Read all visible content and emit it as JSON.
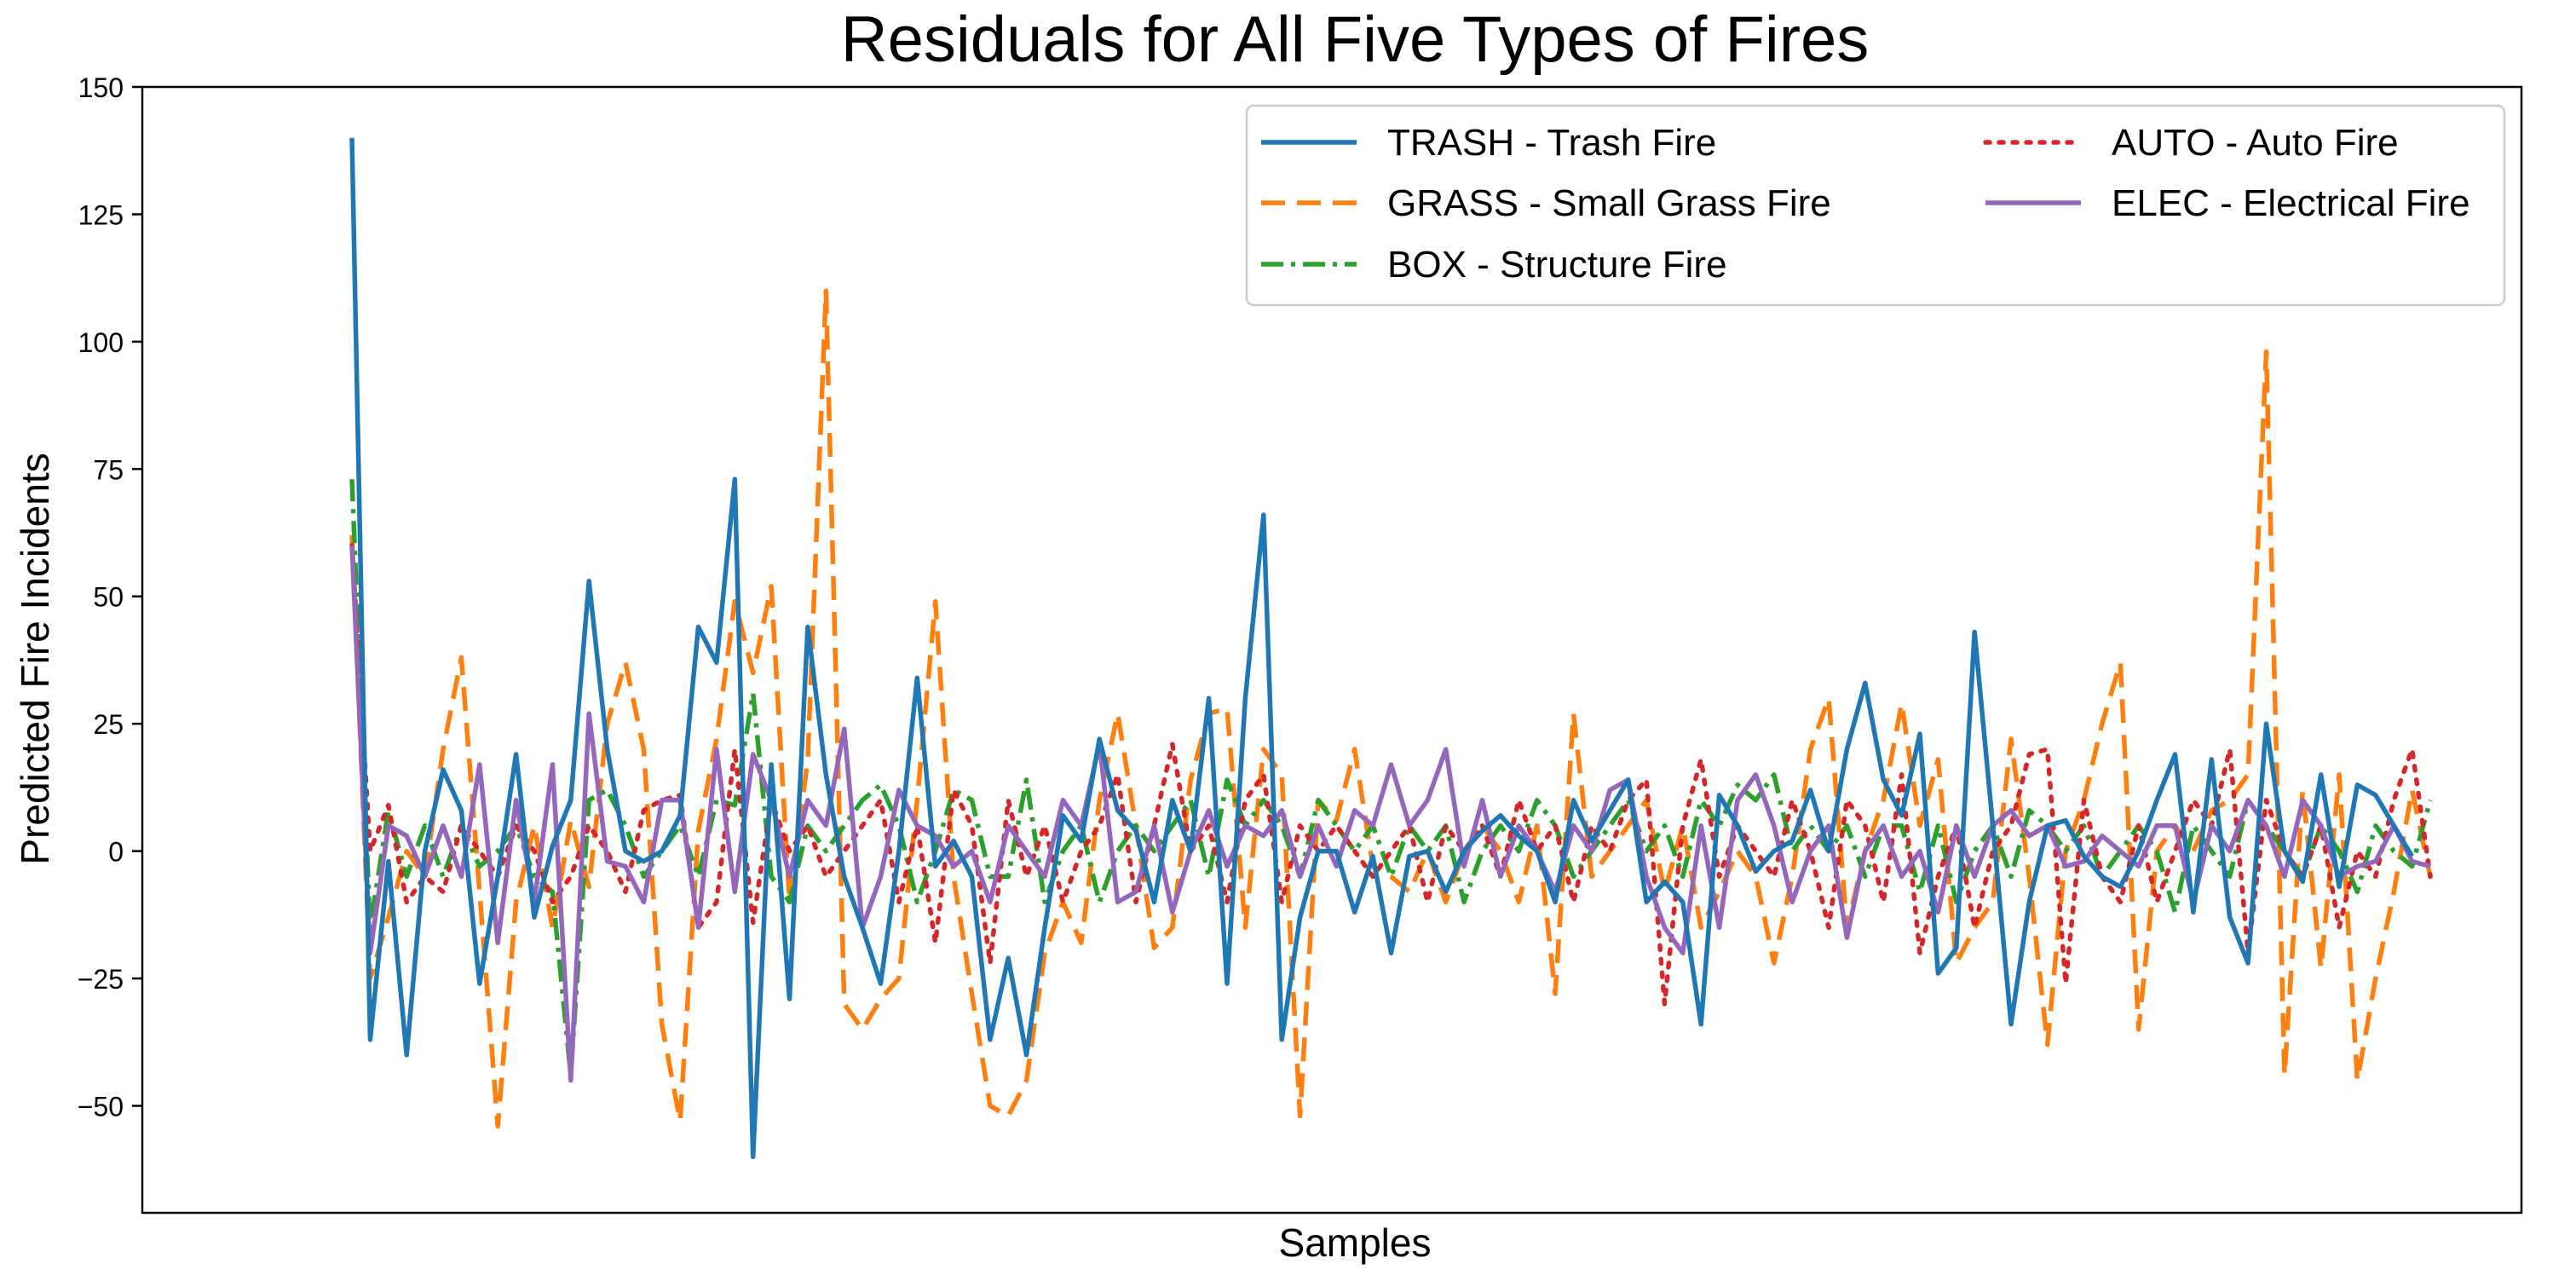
{
  "chart_data": {
    "type": "line",
    "title": "Residuals for All Five Types of Fires",
    "xlabel": "Samples",
    "ylabel": "Predicted Fire Incidents",
    "ylim": [
      -71,
      150
    ],
    "yticks": [
      -50,
      -25,
      0,
      25,
      50,
      75,
      100,
      125,
      150
    ],
    "xticks": [],
    "xlim": [
      -11.5,
      119
    ],
    "grid": false,
    "legend": {
      "placement": "upper-right",
      "columns": 2
    },
    "series": [
      {
        "name": "TRASH - Trash Fire",
        "color": "#1f77b4",
        "dash": "solid",
        "values": [
          140,
          -37,
          -2,
          -40,
          0,
          16,
          8,
          -26,
          -5,
          19,
          -13,
          1,
          10,
          53,
          20,
          0,
          -2,
          0,
          7,
          44,
          37,
          73,
          -60,
          17,
          -29,
          44,
          15,
          -5,
          -15,
          -26,
          0,
          34,
          -3,
          2,
          -5,
          -37,
          -21,
          -40,
          -15,
          7,
          2,
          22,
          8,
          4,
          -10,
          10,
          0,
          30,
          -26,
          30,
          66,
          -37,
          -13,
          0,
          0,
          -12,
          -1,
          -20,
          -1,
          0,
          -8,
          0,
          4,
          7,
          3,
          0,
          -10,
          10,
          2,
          8,
          14,
          -10,
          -6,
          -10,
          -34,
          11,
          5,
          -4,
          0,
          2,
          12,
          0,
          20,
          33,
          14,
          7,
          23,
          -24,
          -19,
          43,
          5,
          -34,
          -10,
          5,
          6,
          -1,
          -5,
          -7,
          0,
          10,
          19,
          -12,
          18,
          -13,
          -22,
          25,
          0,
          -6,
          15,
          -7,
          13,
          11,
          5,
          -1
        ]
      },
      {
        "name": "GRASS - Small Grass Fire",
        "color": "#ff7f0e",
        "dash": "dashed",
        "values": [
          62,
          -25,
          -13,
          0,
          -5,
          20,
          38,
          -8,
          -54,
          -10,
          5,
          -15,
          6,
          -7,
          25,
          37,
          20,
          -34,
          -53,
          4,
          22,
          49,
          35,
          52,
          -10,
          18,
          110,
          -30,
          -35,
          -29,
          -25,
          10,
          49,
          -5,
          -28,
          -50,
          -52,
          -45,
          -20,
          -10,
          -18,
          10,
          27,
          5,
          -19,
          -15,
          14,
          27,
          28,
          -15,
          20,
          15,
          -52,
          10,
          6,
          20,
          -3,
          -5,
          -8,
          0,
          -10,
          0,
          5,
          0,
          -10,
          5,
          -28,
          27,
          -5,
          0,
          5,
          10,
          -8,
          5,
          -15,
          -8,
          0,
          -5,
          -22,
          -5,
          20,
          30,
          -15,
          0,
          10,
          29,
          5,
          18,
          -22,
          -15,
          -10,
          22,
          -5,
          -38,
          0,
          10,
          25,
          37,
          -35,
          0,
          5,
          0,
          8,
          10,
          15,
          98,
          -44,
          12,
          -23,
          15,
          -45,
          -25,
          -8,
          12,
          -5
        ]
      },
      {
        "name": "BOX - Structure Fire",
        "color": "#2ca02c",
        "dash": "dashdot",
        "values": [
          73,
          -15,
          8,
          -5,
          5,
          -5,
          5,
          -3,
          0,
          5,
          -5,
          -8,
          -44,
          10,
          12,
          5,
          -5,
          0,
          5,
          -5,
          10,
          9,
          31,
          -5,
          -10,
          5,
          0,
          5,
          10,
          13,
          5,
          -10,
          0,
          12,
          10,
          -5,
          -5,
          14,
          -10,
          0,
          5,
          -10,
          0,
          5,
          0,
          5,
          10,
          -5,
          14,
          5,
          10,
          5,
          -5,
          10,
          5,
          0,
          5,
          -5,
          5,
          0,
          5,
          -10,
          0,
          5,
          0,
          10,
          5,
          -5,
          0,
          5,
          10,
          0,
          5,
          -5,
          10,
          5,
          13,
          10,
          15,
          0,
          5,
          0,
          5,
          -5,
          5,
          5,
          -8,
          5,
          -10,
          0,
          5,
          -5,
          8,
          5,
          0,
          5,
          -5,
          0,
          5,
          0,
          -12,
          5,
          0,
          -5,
          10,
          5,
          0,
          -5,
          5,
          0,
          -8,
          5,
          0,
          -3,
          10
        ]
      },
      {
        "name": "AUTO - Auto Fire",
        "color": "#d62728",
        "dash": "dotted",
        "values": [
          60,
          0,
          9,
          -10,
          -5,
          -8,
          5,
          0,
          -5,
          5,
          0,
          -10,
          -5,
          5,
          0,
          -8,
          8,
          10,
          11,
          -15,
          -10,
          20,
          -14,
          10,
          0,
          5,
          -5,
          0,
          5,
          10,
          -10,
          5,
          -18,
          12,
          5,
          -22,
          10,
          -5,
          5,
          -10,
          0,
          5,
          15,
          -10,
          5,
          21,
          0,
          5,
          -10,
          10,
          15,
          -10,
          5,
          0,
          5,
          0,
          -5,
          0,
          5,
          -10,
          5,
          0,
          5,
          -5,
          10,
          0,
          5,
          -10,
          5,
          0,
          10,
          14,
          -30,
          5,
          18,
          -5,
          5,
          0,
          -5,
          10,
          0,
          -15,
          10,
          5,
          -10,
          15,
          -20,
          -5,
          5,
          -15,
          0,
          5,
          19,
          20,
          -26,
          10,
          -5,
          -10,
          5,
          -10,
          0,
          10,
          5,
          20,
          -20,
          10,
          0,
          -5,
          5,
          -15,
          0,
          -5,
          10,
          20,
          -5
        ]
      },
      {
        "name": "ELEC - Electrical Fire",
        "color": "#9467bd",
        "dash": "solid",
        "values": [
          60,
          -20,
          5,
          3,
          -5,
          5,
          -5,
          17,
          -18,
          10,
          -10,
          17,
          -45,
          27,
          -2,
          -3,
          -10,
          10,
          10,
          -15,
          20,
          -8,
          19,
          10,
          -5,
          10,
          5,
          24,
          -15,
          -5,
          12,
          5,
          3,
          -3,
          0,
          -10,
          5,
          0,
          -5,
          10,
          5,
          21,
          -10,
          -8,
          5,
          -12,
          0,
          8,
          -3,
          5,
          3,
          8,
          -5,
          5,
          -3,
          8,
          5,
          17,
          5,
          10,
          20,
          -3,
          10,
          -5,
          5,
          0,
          -8,
          5,
          0,
          12,
          14,
          -5,
          -15,
          -20,
          5,
          -15,
          10,
          15,
          5,
          -10,
          0,
          5,
          -17,
          0,
          5,
          -5,
          0,
          -12,
          5,
          -5,
          5,
          8,
          3,
          5,
          -3,
          -2,
          3,
          0,
          -3,
          5,
          5,
          -10,
          5,
          0,
          10,
          5,
          -5,
          10,
          5,
          -5,
          -3,
          -2,
          5,
          -2,
          -3
        ]
      }
    ]
  }
}
